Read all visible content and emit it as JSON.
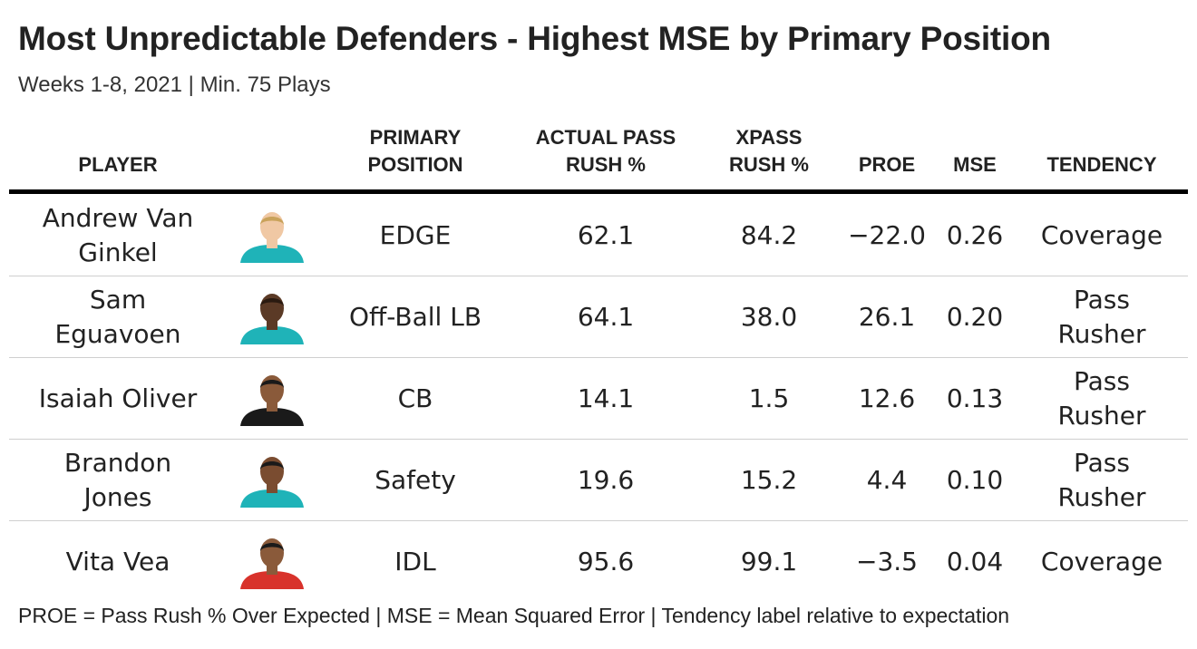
{
  "title": "Most Unpredictable Defenders - Highest MSE by Primary Position",
  "subtitle": "Weeks 1-8, 2021 | Min. 75 Plays",
  "headers": {
    "player": "PLAYER",
    "position": [
      "PRIMARY",
      "POSITION"
    ],
    "actual": [
      "ACTUAL PASS",
      "RUSH %"
    ],
    "xpass": [
      "XPASS",
      "RUSH %"
    ],
    "proe": "PROE",
    "mse": "MSE",
    "tendency": "TENDENCY"
  },
  "rows": [
    {
      "name": "Andrew Van Ginkel",
      "position": "EDGE",
      "actual": "62.1",
      "xpass": "84.2",
      "proe": "−22.0",
      "mse": "0.26",
      "tendency": "Coverage",
      "jersey_color": "#1fb3b8",
      "skin_color": "#f0c8a4",
      "hair_color": "#c9a25a"
    },
    {
      "name": "Sam Eguavoen",
      "position": "Off-Ball LB",
      "actual": "64.1",
      "xpass": "38.0",
      "proe": "26.1",
      "mse": "0.20",
      "tendency": "Pass Rusher",
      "jersey_color": "#1fb3b8",
      "skin_color": "#5b3a26",
      "hair_color": "#2a1a10"
    },
    {
      "name": "Isaiah Oliver",
      "position": "CB",
      "actual": "14.1",
      "xpass": "1.5",
      "proe": "12.6",
      "mse": "0.13",
      "tendency": "Pass Rusher",
      "jersey_color": "#1a1a1a",
      "skin_color": "#8a5a3a",
      "hair_color": "#1a1a1a"
    },
    {
      "name": "Brandon Jones",
      "position": "Safety",
      "actual": "19.6",
      "xpass": "15.2",
      "proe": "4.4",
      "mse": "0.10",
      "tendency": "Pass Rusher",
      "jersey_color": "#1fb3b8",
      "skin_color": "#7a4c30",
      "hair_color": "#1a1a1a"
    },
    {
      "name": "Vita Vea",
      "position": "IDL",
      "actual": "95.6",
      "xpass": "99.1",
      "proe": "−3.5",
      "mse": "0.04",
      "tendency": "Coverage",
      "jersey_color": "#d8322b",
      "skin_color": "#8a5a3a",
      "hair_color": "#1a1a1a"
    }
  ],
  "footnote": "PROE = Pass Rush % Over Expected | MSE = Mean Squared Error | Tendency label relative to expectation"
}
